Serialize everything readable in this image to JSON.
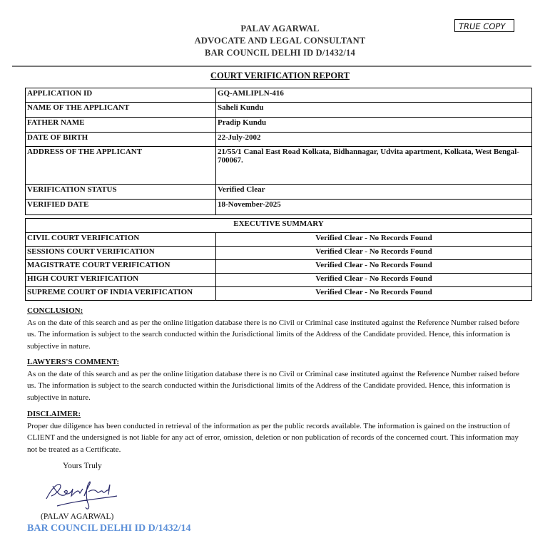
{
  "header": {
    "name": "PALAV AGARWAL",
    "designation": "ADVOCATE AND LEGAL CONSULTANT",
    "bar_id": "BAR COUNCIL DELHI ID D/1432/14",
    "true_copy": "TRUE COPY"
  },
  "title": "COURT VERIFICATION REPORT",
  "details": [
    {
      "label": "APPLICATION ID",
      "value": "GQ-AMLIPLN-416"
    },
    {
      "label": "NAME OF THE APPLICANT",
      "value": "Saheli Kundu"
    },
    {
      "label": "FATHER NAME",
      "value": "Pradip Kundu"
    },
    {
      "label": "DATE OF BIRTH",
      "value": "22-July-2002"
    },
    {
      "label": "ADDRESS OF THE APPLICANT",
      "value": "21/55/1 Canal East Road Kolkata, Bidhannagar, Udvita apartment, Kolkata, West Bengal-700067."
    },
    {
      "label": "VERIFICATION STATUS",
      "value": "Verified Clear"
    },
    {
      "label": "VERIFIED DATE",
      "value": "18-November-2025"
    }
  ],
  "summary": {
    "heading": "EXECUTIVE SUMMARY",
    "rows": [
      {
        "label": "CIVIL COURT VERIFICATION",
        "value": "Verified Clear - No Records Found"
      },
      {
        "label": "SESSIONS COURT VERIFICATION",
        "value": "Verified Clear - No Records Found"
      },
      {
        "label": "MAGISTRATE COURT VERIFICATION",
        "value": "Verified Clear - No Records Found"
      },
      {
        "label": "HIGH COURT VERIFICATION",
        "value": "Verified Clear - No Records Found"
      },
      {
        "label": "SUPREME COURT OF INDIA VERIFICATION",
        "value": "Verified Clear - No Records Found"
      }
    ]
  },
  "conclusion": {
    "heading": "CONCLUSION:",
    "text": "As on the date of this search and as per the online litigation database there is no Civil or Criminal case instituted against the Reference Number raised before us. The information is subject to the search conducted within the Jurisdictional limits of the Address of the Candidate provided. Hence, this information is subjective in nature."
  },
  "comment": {
    "heading": "LAWYERS'S COMMENT:",
    "text": "As on the date of this search and as per the online litigation database there is no Civil or Criminal case instituted against the Reference Number raised before us. The information is subject to the search conducted within the Jurisdictional limits of the Address of the Candidate provided. Hence, this information is subjective in nature."
  },
  "disclaimer": {
    "heading": "DISCLAIMER:",
    "text": "Proper due diligence has been conducted in retrieval of the information as per the public records available. The information is gained on the instruction of CLIENT and the undersigned is not liable for any act of error, omission, deletion or non publication of records of the concerned court. This information may not be treated as a Certificate."
  },
  "signoff": {
    "closing": "Yours Truly",
    "signature": "Palav Agarwal",
    "name": "(PALAV AGARWAL)",
    "bar_id": "BAR COUNCIL DELHI ID D/1432/14",
    "bar_id_color": "#5b8fd8"
  }
}
